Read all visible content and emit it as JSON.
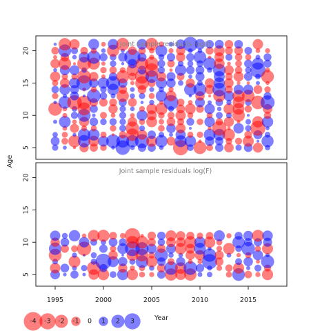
{
  "chart_data": [
    {
      "type": "scatter",
      "title": "Joint sample residuals log(I)",
      "ylabel": "Age",
      "xlim": [
        1993,
        2019
      ],
      "ylim": [
        3.2,
        22.3
      ],
      "yticks": [
        "5",
        "10",
        "15",
        "20"
      ],
      "ages": [
        5,
        6,
        7,
        8,
        9,
        10,
        11,
        12,
        13,
        14,
        15,
        16,
        17,
        18,
        19,
        20,
        21
      ],
      "years": [
        1995,
        1996,
        1997,
        1998,
        1999,
        2000,
        2001,
        2002,
        2003,
        2004,
        2005,
        2006,
        2007,
        2008,
        2009,
        2010,
        2011,
        2012,
        2013,
        2014,
        2015,
        2016,
        2017
      ],
      "residual_colors": {
        "positive": "#0000FF",
        "negative": "#FF0000"
      }
    },
    {
      "type": "scatter",
      "title": "Joint sample residuals log(F)",
      "xlim": [
        1993,
        2019
      ],
      "ylim": [
        3.2,
        22.3
      ],
      "yticks": [
        "5",
        "10",
        "15",
        "20"
      ],
      "xticks": [
        "1995",
        "2000",
        "2005",
        "2010",
        "2015"
      ],
      "xlabel": "Year",
      "ages": [
        5,
        6,
        7,
        8,
        9,
        10,
        11
      ],
      "years": [
        1995,
        1996,
        1997,
        1998,
        1999,
        2000,
        2001,
        2002,
        2003,
        2004,
        2005,
        2006,
        2007,
        2008,
        2009,
        2010,
        2011,
        2012,
        2013,
        2014,
        2015,
        2016,
        2017
      ]
    }
  ],
  "legend": {
    "values": [
      "-4",
      "-3",
      "-2",
      "-1",
      "0",
      "1",
      "2",
      "3"
    ]
  }
}
